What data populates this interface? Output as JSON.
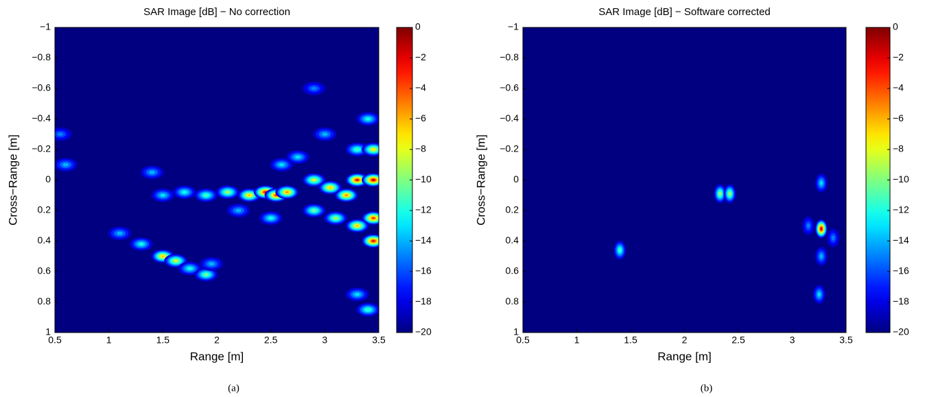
{
  "chart_data": [
    {
      "type": "heatmap",
      "title": "SAR Image [dB] − No correction",
      "xlabel": "Range [m]",
      "ylabel": "Cross−Range [m]",
      "caption": "(a)",
      "xlim": [
        0.5,
        3.5
      ],
      "ylim": [
        -1,
        1
      ],
      "y_inverted": true,
      "xticks": [
        0.5,
        1,
        1.5,
        2,
        2.5,
        3,
        3.5
      ],
      "yticks": [
        {
          "value": -1,
          "label": "−1"
        },
        {
          "value": -0.8,
          "label": "−0.8"
        },
        {
          "value": -0.6,
          "label": "−0.6"
        },
        {
          "value": -0.4,
          "label": "−0.4"
        },
        {
          "value": -0.2,
          "label": "−0.2"
        },
        0,
        0.2,
        0.4,
        0.6,
        0.8,
        1
      ],
      "colorbar": {
        "lim": [
          -20,
          0
        ],
        "ticks": [
          0,
          {
            "value": -2,
            "label": "−2"
          },
          {
            "value": -4,
            "label": "−4"
          },
          {
            "value": -6,
            "label": "−6"
          },
          {
            "value": -8,
            "label": "−8"
          },
          {
            "value": -10,
            "label": "−10"
          },
          {
            "value": -12,
            "label": "−12"
          },
          {
            "value": -14,
            "label": "−14"
          },
          {
            "value": -16,
            "label": "−16"
          },
          {
            "value": -18,
            "label": "−18"
          },
          {
            "value": -20,
            "label": "−20"
          }
        ],
        "colormap": "jet"
      },
      "spots": [
        {
          "x": 1.5,
          "y": 0.1,
          "value": -13
        },
        {
          "x": 1.7,
          "y": 0.08,
          "value": -12
        },
        {
          "x": 1.9,
          "y": 0.1,
          "value": -11
        },
        {
          "x": 2.1,
          "y": 0.08,
          "value": -9
        },
        {
          "x": 2.3,
          "y": 0.1,
          "value": -6
        },
        {
          "x": 2.45,
          "y": 0.08,
          "value": -2
        },
        {
          "x": 2.55,
          "y": 0.1,
          "value": -3
        },
        {
          "x": 2.65,
          "y": 0.08,
          "value": -5
        },
        {
          "x": 1.1,
          "y": 0.35,
          "value": -14
        },
        {
          "x": 1.3,
          "y": 0.42,
          "value": -12
        },
        {
          "x": 1.5,
          "y": 0.5,
          "value": -6
        },
        {
          "x": 1.62,
          "y": 0.53,
          "value": -8
        },
        {
          "x": 1.75,
          "y": 0.58,
          "value": -12
        },
        {
          "x": 1.9,
          "y": 0.62,
          "value": -10
        },
        {
          "x": 1.95,
          "y": 0.55,
          "value": -14
        },
        {
          "x": 2.9,
          "y": 0.0,
          "value": -8
        },
        {
          "x": 3.05,
          "y": 0.05,
          "value": -6
        },
        {
          "x": 3.2,
          "y": 0.1,
          "value": -5
        },
        {
          "x": 3.3,
          "y": 0.0,
          "value": -2
        },
        {
          "x": 3.45,
          "y": 0.0,
          "value": -1
        },
        {
          "x": 3.45,
          "y": 0.25,
          "value": -3
        },
        {
          "x": 3.45,
          "y": 0.4,
          "value": -2
        },
        {
          "x": 3.3,
          "y": 0.3,
          "value": -6
        },
        {
          "x": 3.1,
          "y": 0.25,
          "value": -9
        },
        {
          "x": 2.9,
          "y": 0.2,
          "value": -10
        },
        {
          "x": 3.3,
          "y": -0.2,
          "value": -11
        },
        {
          "x": 3.45,
          "y": -0.2,
          "value": -7
        },
        {
          "x": 3.4,
          "y": -0.4,
          "value": -12
        },
        {
          "x": 3.4,
          "y": 0.85,
          "value": -11
        },
        {
          "x": 3.3,
          "y": 0.75,
          "value": -13
        },
        {
          "x": 2.5,
          "y": 0.25,
          "value": -12
        },
        {
          "x": 2.2,
          "y": 0.2,
          "value": -14
        },
        {
          "x": 2.6,
          "y": -0.1,
          "value": -13
        },
        {
          "x": 2.75,
          "y": -0.15,
          "value": -13
        },
        {
          "x": 3.0,
          "y": -0.3,
          "value": -14
        },
        {
          "x": 2.9,
          "y": -0.6,
          "value": -15
        },
        {
          "x": 1.4,
          "y": -0.05,
          "value": -14
        },
        {
          "x": 0.55,
          "y": -0.3,
          "value": -15
        },
        {
          "x": 0.6,
          "y": -0.1,
          "value": -14
        }
      ]
    },
    {
      "type": "heatmap",
      "title": "SAR Image [dB] − Software corrected",
      "xlabel": "Range [m]",
      "ylabel": "Cross−Range [m]",
      "caption": "(b)",
      "xlim": [
        0.5,
        3.5
      ],
      "ylim": [
        -1,
        1
      ],
      "y_inverted": true,
      "xticks": [
        0.5,
        1,
        1.5,
        2,
        2.5,
        3,
        3.5
      ],
      "yticks": [
        {
          "value": -1,
          "label": "−1"
        },
        {
          "value": -0.8,
          "label": "−0.8"
        },
        {
          "value": -0.6,
          "label": "−0.6"
        },
        {
          "value": -0.4,
          "label": "−0.4"
        },
        {
          "value": -0.2,
          "label": "−0.2"
        },
        0,
        0.2,
        0.4,
        0.6,
        0.8,
        1
      ],
      "colorbar": {
        "lim": [
          -20,
          0
        ],
        "ticks": [
          0,
          {
            "value": -2,
            "label": "−2"
          },
          {
            "value": -4,
            "label": "−4"
          },
          {
            "value": -6,
            "label": "−6"
          },
          {
            "value": -8,
            "label": "−8"
          },
          {
            "value": -10,
            "label": "−10"
          },
          {
            "value": -12,
            "label": "−12"
          },
          {
            "value": -14,
            "label": "−14"
          },
          {
            "value": -16,
            "label": "−16"
          },
          {
            "value": -18,
            "label": "−18"
          },
          {
            "value": -20,
            "label": "−20"
          }
        ],
        "colormap": "jet"
      },
      "spots": [
        {
          "x": 1.4,
          "y": 0.46,
          "value": -11
        },
        {
          "x": 2.33,
          "y": 0.09,
          "value": -9
        },
        {
          "x": 2.42,
          "y": 0.09,
          "value": -9
        },
        {
          "x": 3.27,
          "y": 0.32,
          "value": -1
        },
        {
          "x": 3.27,
          "y": 0.5,
          "value": -14
        },
        {
          "x": 3.25,
          "y": 0.75,
          "value": -13
        },
        {
          "x": 3.27,
          "y": 0.02,
          "value": -13
        },
        {
          "x": 3.15,
          "y": 0.3,
          "value": -15
        },
        {
          "x": 3.38,
          "y": 0.38,
          "value": -15
        }
      ]
    }
  ]
}
